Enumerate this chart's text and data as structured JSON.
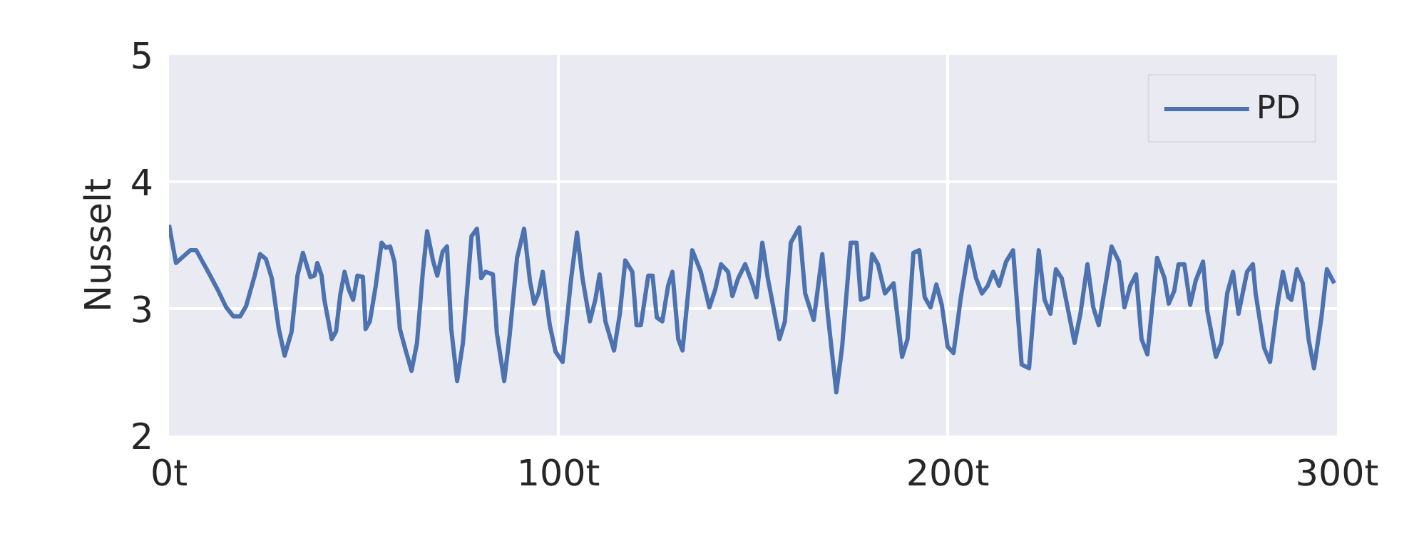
{
  "chart_data": {
    "type": "line",
    "ylabel": "Nusselt",
    "xlim": [
      0,
      300
    ],
    "ylim": [
      2,
      5
    ],
    "xticks": [
      {
        "value": 0,
        "label": "0t"
      },
      {
        "value": 100,
        "label": "100t"
      },
      {
        "value": 200,
        "label": "200t"
      },
      {
        "value": 300,
        "label": "300t"
      }
    ],
    "yticks": [
      2,
      3,
      4,
      5
    ],
    "grid": true,
    "legend": "top right",
    "marker": "none",
    "line_style": "solid",
    "series": [
      {
        "name": "PD",
        "color": "#4c72b0",
        "x": [
          0,
          1.8,
          5.5,
          7.0,
          10.6,
          12.5,
          14.7,
          16.5,
          18.3,
          19.8,
          22.0,
          23.4,
          24.9,
          26.4,
          28.2,
          29.7,
          31.5,
          33.0,
          34.4,
          35.5,
          36.3,
          37.4,
          38.1,
          39.2,
          39.9,
          41.8,
          42.9,
          44.0,
          45.1,
          46.2,
          47.3,
          48.4,
          49.8,
          50.5,
          51.6,
          53.1,
          54.6,
          55.7,
          56.8,
          57.9,
          59.3,
          60.8,
          62.3,
          63.7,
          65.2,
          66.3,
          67.8,
          68.9,
          70.3,
          71.4,
          72.5,
          74.0,
          75.5,
          77.7,
          79.1,
          80.2,
          81.3,
          83.2,
          84.2,
          86.1,
          87.5,
          89.4,
          91.2,
          92.7,
          93.8,
          94.9,
          96.0,
          97.8,
          99.3,
          101.1,
          103.3,
          104.8,
          106.2,
          108.1,
          109.5,
          110.6,
          112.1,
          114.3,
          115.8,
          117.2,
          119.0,
          120.1,
          121.2,
          123.1,
          124.2,
          125.3,
          126.7,
          128.2,
          129.3,
          130.8,
          131.9,
          134.4,
          136.6,
          138.8,
          140.3,
          141.8,
          143.6,
          144.7,
          146.2,
          148.0,
          149.8,
          150.9,
          152.4,
          153.8,
          156.8,
          158.2,
          159.7,
          161.9,
          163.4,
          165.6,
          167.8,
          169.2,
          171.4,
          172.9,
          175.1,
          176.6,
          177.7,
          179.5,
          180.6,
          182.1,
          183.9,
          186.1,
          188.3,
          189.7,
          191.2,
          192.7,
          194.1,
          195.6,
          197.1,
          198.5,
          200.0,
          201.5,
          203.3,
          205.5,
          207.3,
          208.8,
          210.3,
          211.7,
          213.2,
          215.0,
          216.8,
          219.0,
          220.9,
          223.4,
          224.9,
          226.4,
          227.8,
          229.3,
          230.8,
          232.6,
          234.1,
          235.9,
          237.4,
          238.8,
          240.7,
          242.1,
          244.0,
          245.4,
          246.9,
          248.4,
          249.8,
          251.3,
          253.8,
          255.7,
          256.8,
          258.2,
          259.3,
          260.8,
          262.3,
          263.7,
          265.6,
          266.7,
          268.9,
          270.3,
          271.8,
          273.3,
          274.7,
          276.9,
          278.4,
          279.1,
          281.3,
          282.8,
          284.6,
          286.1,
          287.5,
          288.3,
          289.7,
          291.2,
          292.7,
          294.1,
          296.0,
          297.4,
          299.3
        ],
        "values": [
          3.66,
          3.36,
          3.46,
          3.46,
          3.26,
          3.15,
          3.01,
          2.94,
          2.94,
          3.02,
          3.26,
          3.43,
          3.39,
          3.24,
          2.84,
          2.63,
          2.82,
          3.26,
          3.44,
          3.33,
          3.25,
          3.26,
          3.36,
          3.26,
          3.07,
          2.76,
          2.82,
          3.11,
          3.29,
          3.15,
          3.07,
          3.26,
          3.25,
          2.84,
          2.9,
          3.18,
          3.52,
          3.48,
          3.49,
          3.37,
          2.84,
          2.67,
          2.51,
          2.73,
          3.29,
          3.61,
          3.38,
          3.26,
          3.45,
          3.49,
          2.84,
          2.43,
          2.73,
          3.57,
          3.63,
          3.24,
          3.29,
          3.27,
          2.81,
          2.43,
          2.79,
          3.4,
          3.63,
          3.22,
          3.04,
          3.12,
          3.29,
          2.87,
          2.66,
          2.58,
          3.24,
          3.6,
          3.24,
          2.9,
          3.07,
          3.27,
          2.9,
          2.67,
          2.96,
          3.38,
          3.29,
          2.87,
          2.87,
          3.26,
          3.26,
          2.93,
          2.9,
          3.18,
          3.29,
          2.76,
          2.67,
          3.46,
          3.29,
          3.01,
          3.15,
          3.35,
          3.29,
          3.1,
          3.24,
          3.35,
          3.2,
          3.09,
          3.52,
          3.24,
          2.76,
          2.9,
          3.52,
          3.64,
          3.12,
          2.91,
          3.43,
          2.96,
          2.34,
          2.7,
          3.52,
          3.52,
          3.07,
          3.09,
          3.43,
          3.35,
          3.12,
          3.2,
          2.62,
          2.76,
          3.44,
          3.46,
          3.09,
          3.01,
          3.19,
          3.03,
          2.7,
          2.65,
          3.07,
          3.49,
          3.24,
          3.12,
          3.18,
          3.29,
          3.18,
          3.37,
          3.46,
          2.56,
          2.53,
          3.46,
          3.07,
          2.96,
          3.31,
          3.24,
          3.01,
          2.73,
          2.96,
          3.35,
          3.01,
          2.87,
          3.22,
          3.49,
          3.37,
          3.01,
          3.18,
          3.27,
          2.76,
          2.64,
          3.4,
          3.24,
          3.04,
          3.14,
          3.35,
          3.35,
          3.03,
          3.22,
          3.37,
          2.98,
          2.62,
          2.73,
          3.12,
          3.29,
          2.96,
          3.29,
          3.35,
          3.12,
          2.69,
          2.58,
          3.01,
          3.29,
          3.09,
          3.07,
          3.31,
          3.2,
          2.76,
          2.53,
          2.93,
          3.31,
          3.2
        ]
      }
    ]
  }
}
